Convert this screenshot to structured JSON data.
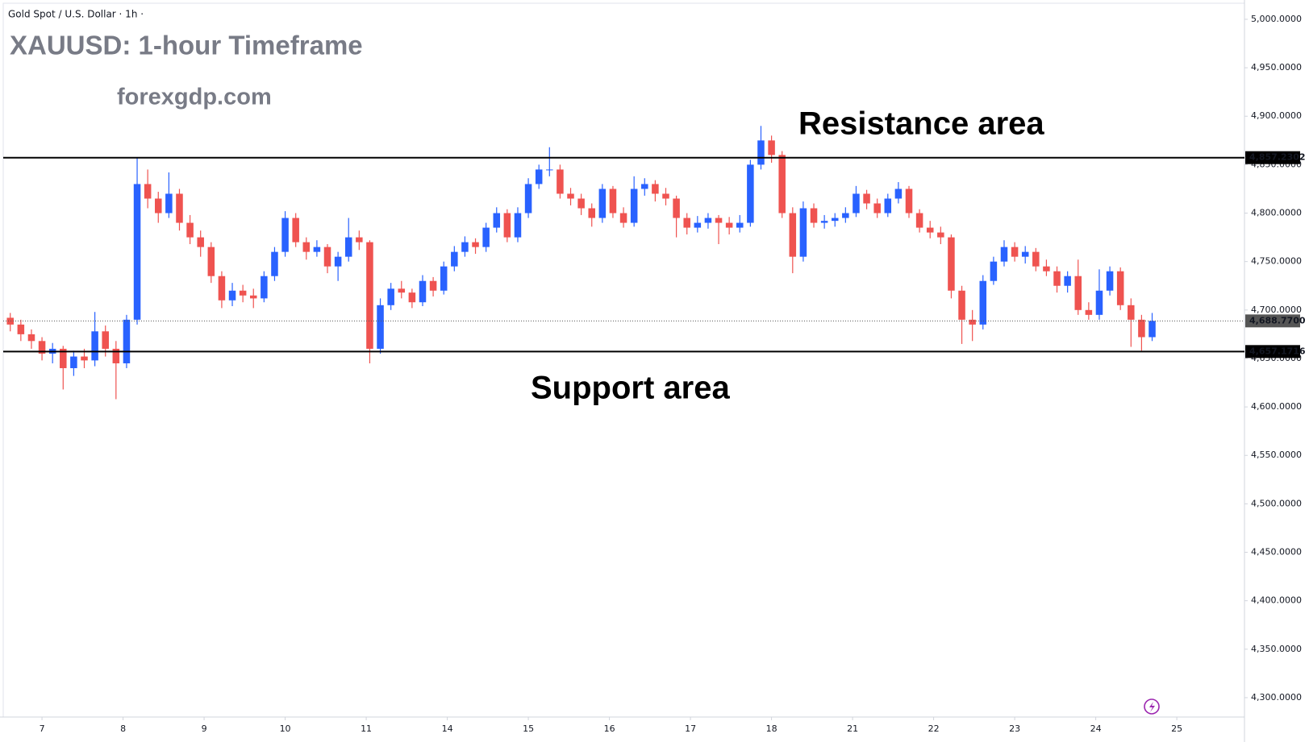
{
  "chart_data": {
    "type": "candlestick",
    "header": "Gold Spot / U.S. Dollar · 1h ·",
    "title": "XAUUSD: 1-hour Timeframe",
    "subtitle": "forexgdp.com",
    "annotations": [
      "Resistance area",
      "Support area"
    ],
    "up_color": "#2962ff",
    "down_color": "#ef5350",
    "ylim": [
      4280,
      5016.6
    ],
    "yticks": [
      {
        "value": 4300,
        "label": "4,300.0000"
      },
      {
        "value": 4350,
        "label": "4,350.0000"
      },
      {
        "value": 4400,
        "label": "4,400.0000"
      },
      {
        "value": 4450,
        "label": "4,450.0000"
      },
      {
        "value": 4500,
        "label": "4,500.0000"
      },
      {
        "value": 4550,
        "label": "4,550.0000"
      },
      {
        "value": 4600,
        "label": "4,600.0000"
      },
      {
        "value": 4650,
        "label": "4,650.0000"
      },
      {
        "value": 4700,
        "label": "4,700.0000"
      },
      {
        "value": 4750,
        "label": "4,750.0000"
      },
      {
        "value": 4800,
        "label": "4,800.0000"
      },
      {
        "value": 4850,
        "label": "4,850.0000"
      },
      {
        "value": 4900,
        "label": "4,900.0000"
      },
      {
        "value": 4950,
        "label": "4,950.0000"
      },
      {
        "value": 5000,
        "label": "5,000.0000"
      }
    ],
    "xlim": [
      -11,
      341.2
    ],
    "xticks": [
      {
        "value": 0,
        "label": "7"
      },
      {
        "value": 23,
        "label": "8"
      },
      {
        "value": 46,
        "label": "9"
      },
      {
        "value": 69,
        "label": "10"
      },
      {
        "value": 92,
        "label": "11"
      },
      {
        "value": 115,
        "label": "14"
      },
      {
        "value": 138,
        "label": "15"
      },
      {
        "value": 161,
        "label": "16"
      },
      {
        "value": 184,
        "label": "17"
      },
      {
        "value": 207,
        "label": "18"
      },
      {
        "value": 230,
        "label": "21"
      },
      {
        "value": 253,
        "label": "22"
      },
      {
        "value": 276,
        "label": "23"
      },
      {
        "value": 299,
        "label": "24"
      },
      {
        "value": 322,
        "label": "25"
      }
    ],
    "hlines": [
      {
        "value": 4857.2302,
        "label": "4,857.2302",
        "color": "#000000",
        "style": "solid"
      },
      {
        "value": 4657.1716,
        "label": "4,657.1716",
        "color": "#000000",
        "style": "solid"
      },
      {
        "value": 4688.77,
        "label": "4,688.7700",
        "color": "#555555",
        "style": "dotted"
      }
    ],
    "x": [
      -9,
      -6,
      -3,
      0,
      3,
      6,
      9,
      12,
      15,
      18,
      21,
      24,
      27,
      30,
      33,
      36,
      39,
      42,
      45,
      48,
      51,
      54,
      57,
      60,
      63,
      66,
      69,
      72,
      75,
      78,
      81,
      84,
      87,
      90,
      93,
      96,
      99,
      102,
      105,
      108,
      111,
      114,
      117,
      120,
      123,
      126,
      129,
      132,
      135,
      138,
      141,
      144,
      147,
      150,
      153,
      156,
      159,
      162,
      165,
      168,
      171,
      174,
      177,
      180,
      183,
      186,
      189,
      192,
      195,
      198,
      201,
      204,
      207,
      210,
      213,
      216,
      219,
      222,
      225,
      228,
      231,
      234,
      237,
      240,
      243,
      246,
      249,
      252,
      255,
      258,
      261,
      264,
      267,
      270,
      273,
      276,
      279,
      282,
      285,
      288,
      291,
      294,
      297,
      300,
      303,
      306,
      309,
      312,
      315
    ],
    "ohlc": [
      [
        4692,
        4697,
        4678,
        4685
      ],
      [
        4685,
        4690,
        4668,
        4675
      ],
      [
        4675,
        4680,
        4660,
        4668
      ],
      [
        4668,
        4672,
        4648,
        4655
      ],
      [
        4655,
        4666,
        4645,
        4660
      ],
      [
        4660,
        4663,
        4618,
        4640
      ],
      [
        4640,
        4658,
        4632,
        4652
      ],
      [
        4652,
        4660,
        4640,
        4648
      ],
      [
        4648,
        4698,
        4642,
        4678
      ],
      [
        4678,
        4684,
        4652,
        4660
      ],
      [
        4660,
        4668,
        4608,
        4645
      ],
      [
        4645,
        4695,
        4640,
        4690
      ],
      [
        4690,
        4857,
        4685,
        4830
      ],
      [
        4830,
        4845,
        4805,
        4815
      ],
      [
        4815,
        4822,
        4790,
        4800
      ],
      [
        4800,
        4842,
        4795,
        4820
      ],
      [
        4820,
        4825,
        4782,
        4790
      ],
      [
        4790,
        4798,
        4768,
        4775
      ],
      [
        4775,
        4782,
        4755,
        4765
      ],
      [
        4765,
        4770,
        4728,
        4735
      ],
      [
        4735,
        4740,
        4702,
        4710
      ],
      [
        4710,
        4728,
        4704,
        4720
      ],
      [
        4720,
        4726,
        4708,
        4715
      ],
      [
        4715,
        4722,
        4702,
        4712
      ],
      [
        4712,
        4740,
        4708,
        4735
      ],
      [
        4735,
        4765,
        4730,
        4760
      ],
      [
        4760,
        4802,
        4755,
        4795
      ],
      [
        4795,
        4800,
        4765,
        4770
      ],
      [
        4770,
        4775,
        4752,
        4760
      ],
      [
        4760,
        4772,
        4755,
        4765
      ],
      [
        4765,
        4768,
        4738,
        4745
      ],
      [
        4745,
        4760,
        4730,
        4755
      ],
      [
        4755,
        4795,
        4750,
        4775
      ],
      [
        4775,
        4782,
        4762,
        4770
      ],
      [
        4770,
        4772,
        4645,
        4660
      ],
      [
        4660,
        4712,
        4655,
        4705
      ],
      [
        4705,
        4728,
        4700,
        4722
      ],
      [
        4722,
        4730,
        4712,
        4718
      ],
      [
        4718,
        4722,
        4702,
        4708
      ],
      [
        4708,
        4736,
        4704,
        4730
      ],
      [
        4730,
        4734,
        4714,
        4720
      ],
      [
        4720,
        4750,
        4716,
        4745
      ],
      [
        4745,
        4766,
        4740,
        4760
      ],
      [
        4760,
        4776,
        4755,
        4770
      ],
      [
        4770,
        4774,
        4758,
        4765
      ],
      [
        4765,
        4790,
        4760,
        4785
      ],
      [
        4785,
        4806,
        4780,
        4800
      ],
      [
        4800,
        4804,
        4770,
        4775
      ],
      [
        4775,
        4806,
        4770,
        4800
      ],
      [
        4800,
        4836,
        4795,
        4830
      ],
      [
        4830,
        4850,
        4825,
        4845
      ],
      [
        4845,
        4868,
        4838,
        4845
      ],
      [
        4845,
        4850,
        4815,
        4820
      ],
      [
        4820,
        4826,
        4808,
        4815
      ],
      [
        4815,
        4820,
        4798,
        4805
      ],
      [
        4805,
        4810,
        4786,
        4795
      ],
      [
        4795,
        4830,
        4790,
        4825
      ],
      [
        4825,
        4828,
        4795,
        4800
      ],
      [
        4800,
        4806,
        4785,
        4790
      ],
      [
        4790,
        4838,
        4786,
        4825
      ],
      [
        4825,
        4836,
        4818,
        4830
      ],
      [
        4830,
        4834,
        4812,
        4820
      ],
      [
        4820,
        4826,
        4808,
        4815
      ],
      [
        4815,
        4818,
        4775,
        4795
      ],
      [
        4795,
        4800,
        4778,
        4785
      ],
      [
        4785,
        4797,
        4780,
        4790
      ],
      [
        4790,
        4800,
        4784,
        4795
      ],
      [
        4795,
        4798,
        4768,
        4790
      ],
      [
        4790,
        4796,
        4778,
        4785
      ],
      [
        4785,
        4798,
        4780,
        4790
      ],
      [
        4790,
        4855,
        4786,
        4850
      ],
      [
        4850,
        4890,
        4845,
        4875
      ],
      [
        4875,
        4880,
        4852,
        4860
      ],
      [
        4860,
        4864,
        4795,
        4800
      ],
      [
        4800,
        4806,
        4738,
        4755
      ],
      [
        4755,
        4812,
        4750,
        4805
      ],
      [
        4805,
        4810,
        4785,
        4790
      ],
      [
        4790,
        4798,
        4784,
        4792
      ],
      [
        4792,
        4800,
        4786,
        4795
      ],
      [
        4795,
        4806,
        4790,
        4800
      ],
      [
        4800,
        4828,
        4796,
        4820
      ],
      [
        4820,
        4824,
        4804,
        4810
      ],
      [
        4810,
        4815,
        4795,
        4800
      ],
      [
        4800,
        4820,
        4796,
        4815
      ],
      [
        4815,
        4832,
        4810,
        4825
      ],
      [
        4825,
        4828,
        4795,
        4800
      ],
      [
        4800,
        4804,
        4780,
        4785
      ],
      [
        4785,
        4792,
        4774,
        4780
      ],
      [
        4780,
        4786,
        4768,
        4775
      ],
      [
        4775,
        4778,
        4712,
        4720
      ],
      [
        4720,
        4725,
        4665,
        4690
      ],
      [
        4690,
        4700,
        4668,
        4685
      ],
      [
        4685,
        4736,
        4680,
        4730
      ],
      [
        4730,
        4755,
        4726,
        4750
      ],
      [
        4750,
        4772,
        4745,
        4765
      ],
      [
        4765,
        4770,
        4750,
        4755
      ],
      [
        4755,
        4766,
        4748,
        4760
      ],
      [
        4760,
        4764,
        4740,
        4745
      ],
      [
        4745,
        4752,
        4735,
        4740
      ],
      [
        4740,
        4745,
        4718,
        4725
      ],
      [
        4725,
        4740,
        4718,
        4735
      ],
      [
        4735,
        4752,
        4695,
        4700
      ],
      [
        4700,
        4708,
        4690,
        4695
      ],
      [
        4695,
        4742,
        4690,
        4720
      ],
      [
        4720,
        4745,
        4715,
        4740
      ],
      [
        4740,
        4744,
        4700,
        4705
      ],
      [
        4705,
        4712,
        4662,
        4690
      ],
      [
        4690,
        4695,
        4658,
        4672
      ],
      [
        4672,
        4697,
        4668,
        4688.77
      ]
    ]
  }
}
